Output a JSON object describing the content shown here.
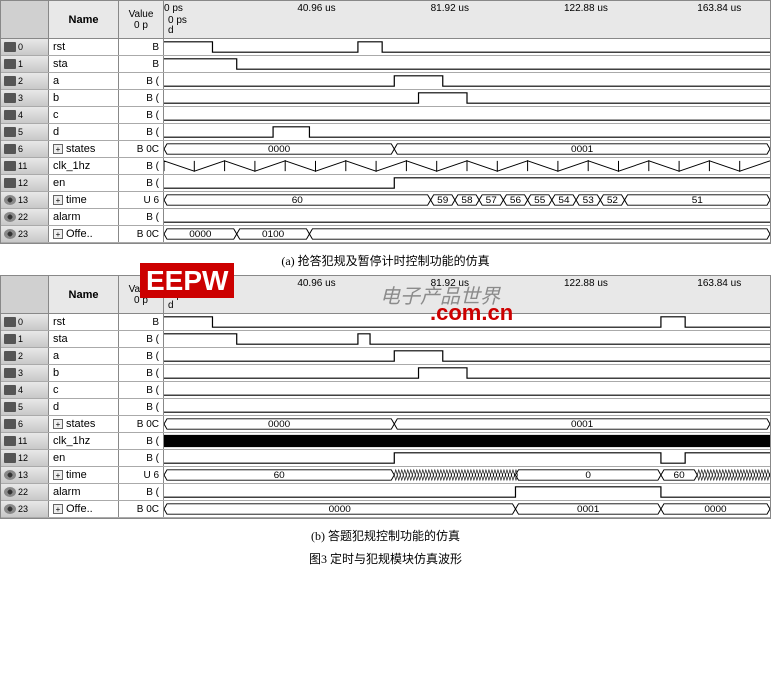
{
  "headers": {
    "name": "Name",
    "value": "Value",
    "value_sub": "0 p"
  },
  "time_axis": {
    "labels": [
      {
        "pos": 0,
        "text": "0 ps"
      },
      {
        "pos": 22,
        "text": "40.96 us"
      },
      {
        "pos": 44,
        "text": "81.92 us"
      },
      {
        "pos": 66,
        "text": "122.88 us"
      },
      {
        "pos": 88,
        "text": "163.84 us"
      }
    ],
    "sub1": "0 ps",
    "sub2": "d"
  },
  "caption_a": "(a) 抢答犯规及暂停计时控制功能的仿真",
  "caption_b": "(b) 答题犯规控制功能的仿真",
  "caption_fig": "图3  定时与犯规模块仿真波形",
  "watermark_main": "EEPW",
  "watermark_sub": ".com.cn",
  "watermark_cn": "电子产品世界",
  "panel_a": {
    "signals": [
      {
        "idx": "0",
        "icon": "cam",
        "name": "rst",
        "val": "B",
        "type": "digital",
        "edges": [
          [
            0,
            1
          ],
          [
            8,
            0
          ],
          [
            32,
            1
          ],
          [
            36,
            0
          ]
        ]
      },
      {
        "idx": "1",
        "icon": "cam",
        "name": "sta",
        "val": "B",
        "type": "digital",
        "edges": [
          [
            0,
            1
          ],
          [
            12,
            0
          ]
        ]
      },
      {
        "idx": "2",
        "icon": "cam",
        "name": "a",
        "val": "B (",
        "type": "digital",
        "edges": [
          [
            0,
            0
          ],
          [
            38,
            1
          ],
          [
            46,
            0
          ]
        ]
      },
      {
        "idx": "3",
        "icon": "cam",
        "name": "b",
        "val": "B (",
        "type": "digital",
        "edges": [
          [
            0,
            0
          ],
          [
            42,
            1
          ],
          [
            50,
            0
          ]
        ]
      },
      {
        "idx": "4",
        "icon": "cam",
        "name": "c",
        "val": "B (",
        "type": "digital",
        "edges": [
          [
            0,
            0
          ]
        ]
      },
      {
        "idx": "5",
        "icon": "cam",
        "name": "d",
        "val": "B (",
        "type": "digital",
        "edges": [
          [
            0,
            0
          ],
          [
            18,
            1
          ],
          [
            24,
            0
          ]
        ]
      },
      {
        "idx": "6",
        "icon": "cam",
        "name": "states",
        "val": "B 0C",
        "type": "bus",
        "expand": true,
        "segments": [
          {
            "end": 38,
            "text": "0000"
          },
          {
            "end": 100,
            "text": "0001"
          }
        ]
      },
      {
        "idx": "11",
        "icon": "cam",
        "name": "clk_1hz",
        "val": "B (",
        "type": "clock",
        "period": 5
      },
      {
        "idx": "12",
        "icon": "cam",
        "name": "en",
        "val": "B (",
        "type": "digital",
        "edges": [
          [
            0,
            0
          ],
          [
            38,
            1
          ]
        ]
      },
      {
        "idx": "13",
        "icon": "eye",
        "name": "time",
        "val": "U 6",
        "type": "bus",
        "expand": true,
        "segments": [
          {
            "end": 44,
            "text": "60"
          },
          {
            "end": 48,
            "text": "59"
          },
          {
            "end": 52,
            "text": "58"
          },
          {
            "end": 56,
            "text": "57"
          },
          {
            "end": 60,
            "text": "56"
          },
          {
            "end": 64,
            "text": "55"
          },
          {
            "end": 68,
            "text": "54"
          },
          {
            "end": 72,
            "text": "53"
          },
          {
            "end": 76,
            "text": "52"
          },
          {
            "end": 100,
            "text": "51"
          }
        ]
      },
      {
        "idx": "22",
        "icon": "eye",
        "name": "alarm",
        "val": "B (",
        "type": "digital",
        "edges": [
          [
            0,
            0
          ]
        ]
      },
      {
        "idx": "23",
        "icon": "eye",
        "name": "Offe..",
        "val": "B 0C",
        "type": "bus",
        "expand": true,
        "segments": [
          {
            "end": 12,
            "text": "0000"
          },
          {
            "end": 24,
            "text": "0100"
          },
          {
            "end": 100,
            "text": ""
          }
        ]
      }
    ]
  },
  "panel_b": {
    "signals": [
      {
        "idx": "0",
        "icon": "cam",
        "name": "rst",
        "val": "B",
        "type": "digital",
        "edges": [
          [
            0,
            1
          ],
          [
            8,
            0
          ],
          [
            82,
            1
          ],
          [
            86,
            0
          ]
        ]
      },
      {
        "idx": "1",
        "icon": "cam",
        "name": "sta",
        "val": "B (",
        "type": "digital",
        "edges": [
          [
            0,
            1
          ],
          [
            12,
            0
          ],
          [
            32,
            1
          ],
          [
            34,
            0
          ]
        ]
      },
      {
        "idx": "2",
        "icon": "cam",
        "name": "a",
        "val": "B (",
        "type": "digital",
        "edges": [
          [
            0,
            0
          ],
          [
            38,
            1
          ],
          [
            46,
            0
          ]
        ]
      },
      {
        "idx": "3",
        "icon": "cam",
        "name": "b",
        "val": "B (",
        "type": "digital",
        "edges": [
          [
            0,
            0
          ],
          [
            42,
            1
          ],
          [
            50,
            0
          ]
        ]
      },
      {
        "idx": "4",
        "icon": "cam",
        "name": "c",
        "val": "B (",
        "type": "digital",
        "edges": [
          [
            0,
            0
          ]
        ]
      },
      {
        "idx": "5",
        "icon": "cam",
        "name": "d",
        "val": "B (",
        "type": "digital",
        "edges": [
          [
            0,
            0
          ]
        ]
      },
      {
        "idx": "6",
        "icon": "cam",
        "name": "states",
        "val": "B 0C",
        "type": "bus",
        "expand": true,
        "segments": [
          {
            "end": 38,
            "text": "0000"
          },
          {
            "end": 100,
            "text": "0001"
          }
        ]
      },
      {
        "idx": "11",
        "icon": "cam",
        "name": "clk_1hz",
        "val": "B (",
        "type": "solidbar"
      },
      {
        "idx": "12",
        "icon": "cam",
        "name": "en",
        "val": "B (",
        "type": "digital",
        "edges": [
          [
            0,
            0
          ],
          [
            38,
            1
          ],
          [
            82,
            0
          ],
          [
            86,
            1
          ]
        ]
      },
      {
        "idx": "13",
        "icon": "eye",
        "name": "time",
        "val": "U 6",
        "type": "bus",
        "expand": true,
        "segments": [
          {
            "end": 38,
            "text": "60"
          },
          {
            "end": 58,
            "text": "dense"
          },
          {
            "end": 82,
            "text": "0"
          },
          {
            "end": 88,
            "text": "60"
          },
          {
            "end": 100,
            "text": "dense"
          }
        ]
      },
      {
        "idx": "22",
        "icon": "eye",
        "name": "alarm",
        "val": "B (",
        "type": "digital",
        "edges": [
          [
            0,
            0
          ],
          [
            58,
            1
          ],
          [
            82,
            0
          ]
        ]
      },
      {
        "idx": "23",
        "icon": "eye",
        "name": "Offe..",
        "val": "B 0C",
        "type": "bus",
        "expand": true,
        "segments": [
          {
            "end": 58,
            "text": "0000"
          },
          {
            "end": 82,
            "text": "0001"
          },
          {
            "end": 100,
            "text": "0000"
          }
        ]
      }
    ]
  }
}
